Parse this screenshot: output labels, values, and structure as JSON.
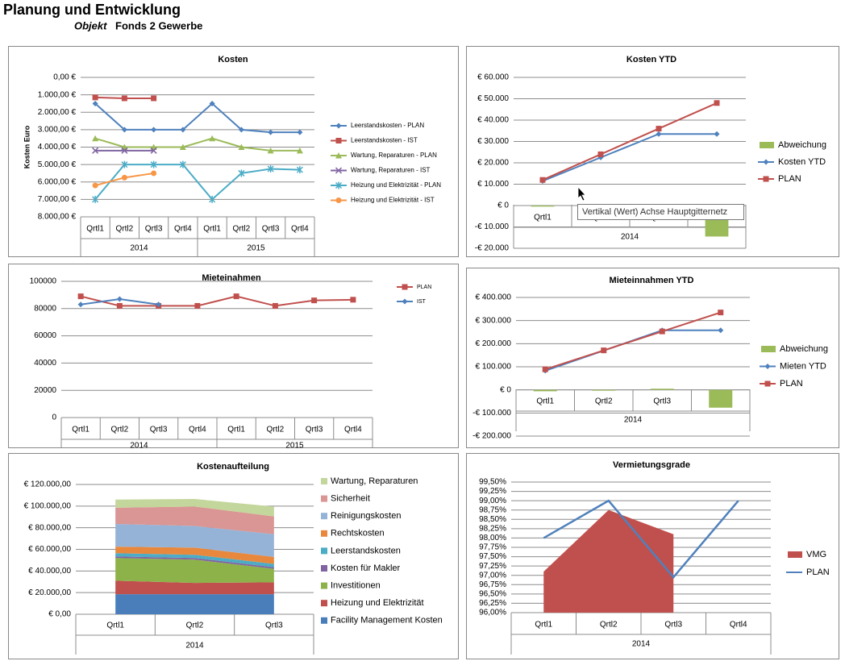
{
  "header": {
    "title": "Planung und Entwicklung",
    "object_label": "Objekt",
    "object_name": "Fonds 2 Gewerbe"
  },
  "tooltip": "Vertikal (Wert) Achse Hauptgitternetz",
  "chart_data": [
    {
      "type": "line",
      "title": "Kosten",
      "ylabel": "Kosten Euro",
      "yreverse": true,
      "grid": true,
      "categories": [
        "Qrtl1",
        "Qrtl2",
        "Qrtl3",
        "Qrtl4",
        "Qrtl1",
        "Qrtl2",
        "Qrtl3",
        "Qrtl4"
      ],
      "category_groups": [
        "2014",
        "2015"
      ],
      "ylim": [
        0,
        8000
      ],
      "yticks": [
        {
          "value": 0,
          "label": "0,00 €"
        },
        {
          "value": 1000,
          "label": "1.000,00 €"
        },
        {
          "value": 2000,
          "label": "2.000,00 €"
        },
        {
          "value": 3000,
          "label": "3.000,00 €"
        },
        {
          "value": 4000,
          "label": "4.000,00 €"
        },
        {
          "value": 5000,
          "label": "5.000,00 €"
        },
        {
          "value": 6000,
          "label": "6.000,00 €"
        },
        {
          "value": 7000,
          "label": "7.000,00 €"
        },
        {
          "value": 8000,
          "label": "8.000,00 €"
        }
      ],
      "series": [
        {
          "name": "Leerstandskosten - PLAN",
          "color": "#4f81bd",
          "kind": "line",
          "marker": "diamond",
          "values": [
            1500,
            3000,
            3000,
            3000,
            1500,
            3000,
            3150,
            3150
          ]
        },
        {
          "name": "Leerstandskosten - IST",
          "color": "#c0504d",
          "kind": "line",
          "marker": "square",
          "values": [
            1150,
            1200,
            1200,
            null,
            null,
            null,
            null,
            null
          ]
        },
        {
          "name": "Wartung, Reparaturen - PLAN",
          "color": "#9bbb59",
          "kind": "line",
          "marker": "triangle",
          "values": [
            3500,
            4000,
            4000,
            4000,
            3500,
            4000,
            4200,
            4200
          ]
        },
        {
          "name": "Wartung, Reparaturen - IST",
          "color": "#8064a2",
          "kind": "line",
          "marker": "x",
          "values": [
            4200,
            4200,
            4200,
            null,
            null,
            null,
            null,
            null
          ]
        },
        {
          "name": "Heizung und Elektrizität - PLAN",
          "color": "#4bacc6",
          "kind": "line",
          "marker": "star",
          "values": [
            7000,
            5000,
            5000,
            5000,
            7000,
            5500,
            5250,
            5300
          ]
        },
        {
          "name": "Heizung und Elektrizität - IST",
          "color": "#f79646",
          "kind": "line",
          "marker": "circle",
          "values": [
            6200,
            5750,
            5500,
            null,
            null,
            null,
            null,
            null
          ]
        }
      ]
    },
    {
      "type": "combo",
      "title": "Kosten YTD",
      "grid": true,
      "categories": [
        "Qrtl1",
        "Qrtl2",
        "Qrtl3",
        "Qrtl4"
      ],
      "category_groups": [
        "2014"
      ],
      "ylim": [
        -20000,
        60000
      ],
      "yticks": [
        {
          "value": -20000,
          "label": "-€ 20.000"
        },
        {
          "value": -10000,
          "label": "-€ 10.000"
        },
        {
          "value": 0,
          "label": "€ 0"
        },
        {
          "value": 10000,
          "label": "€ 10.000"
        },
        {
          "value": 20000,
          "label": "€ 20.000"
        },
        {
          "value": 30000,
          "label": "€ 30.000"
        },
        {
          "value": 40000,
          "label": "€ 40.000"
        },
        {
          "value": 50000,
          "label": "€ 50.000"
        },
        {
          "value": 60000,
          "label": "€ 60.000"
        }
      ],
      "series": [
        {
          "name": "Abweichung",
          "color": "#9bbb59",
          "kind": "bar",
          "values": [
            -500,
            -1500,
            -2500,
            -14500
          ]
        },
        {
          "name": "Kosten YTD",
          "color": "#4f81bd",
          "kind": "line",
          "marker": "diamond",
          "values": [
            11500,
            22500,
            33500,
            33500
          ]
        },
        {
          "name": "PLAN",
          "color": "#c0504d",
          "kind": "line",
          "marker": "square",
          "values": [
            12000,
            24000,
            36000,
            48000
          ]
        }
      ]
    },
    {
      "type": "line",
      "title": "Mieteinahmen",
      "grid": true,
      "categories": [
        "Qrtl1",
        "Qrtl2",
        "Qrtl3",
        "Qrtl4",
        "Qrtl1",
        "Qrtl2",
        "Qrtl3",
        "Qrtl4"
      ],
      "category_groups": [
        "2014",
        "2015"
      ],
      "ylim": [
        0,
        100000
      ],
      "yticks": [
        0,
        20000,
        40000,
        60000,
        80000,
        100000
      ],
      "series": [
        {
          "name": "PLAN",
          "color": "#c0504d",
          "kind": "line",
          "marker": "square",
          "values": [
            89000,
            82000,
            82000,
            82000,
            89000,
            82000,
            86000,
            86500
          ]
        },
        {
          "name": "IST",
          "color": "#4f81bd",
          "kind": "line",
          "marker": "diamond",
          "values": [
            83000,
            87000,
            83000,
            null,
            null,
            null,
            null,
            null
          ]
        }
      ]
    },
    {
      "type": "combo",
      "title": "Mieteinnahmen YTD",
      "grid": true,
      "categories": [
        "Qrtl1",
        "Qrtl2",
        "Qrtl3",
        "Qrtl4"
      ],
      "category_groups": [
        "2014"
      ],
      "ylim": [
        -200000,
        400000
      ],
      "yticks": [
        {
          "value": -200000,
          "label": "-€ 200.000"
        },
        {
          "value": -100000,
          "label": "-€ 100.000"
        },
        {
          "value": 0,
          "label": "€ 0"
        },
        {
          "value": 100000,
          "label": "€ 100.000"
        },
        {
          "value": 200000,
          "label": "€ 200.000"
        },
        {
          "value": 300000,
          "label": "€ 300.000"
        },
        {
          "value": 400000,
          "label": "€ 400.000"
        }
      ],
      "series": [
        {
          "name": "Abweichung",
          "color": "#9bbb59",
          "kind": "bar",
          "values": [
            -6000,
            -1000,
            5000,
            -77000
          ]
        },
        {
          "name": "Mieten YTD",
          "color": "#4f81bd",
          "kind": "line",
          "marker": "diamond",
          "values": [
            83000,
            170000,
            258000,
            258000
          ]
        },
        {
          "name": "PLAN",
          "color": "#c0504d",
          "kind": "line",
          "marker": "square",
          "values": [
            89000,
            171000,
            253000,
            335000
          ]
        }
      ]
    },
    {
      "type": "stacked_area",
      "title": "Kostenaufteilung",
      "grid": true,
      "categories": [
        "Qrtl1",
        "Qrtl2",
        "Qrtl3"
      ],
      "category_groups": [
        "2014"
      ],
      "ylim": [
        0,
        120000
      ],
      "yticks": [
        {
          "value": 0,
          "label": "€ 0,00"
        },
        {
          "value": 20000,
          "label": "€ 20.000,00"
        },
        {
          "value": 40000,
          "label": "€ 40.000,00"
        },
        {
          "value": 60000,
          "label": "€ 60.000,00"
        },
        {
          "value": 80000,
          "label": "€ 80.000,00"
        },
        {
          "value": 100000,
          "label": "€ 100.000,00"
        },
        {
          "value": 120000,
          "label": "€ 120.000,00"
        }
      ],
      "series": [
        {
          "name": "Wartung, Reparaturen",
          "color": "#c3d69b",
          "kind": "area",
          "values": [
            7500,
            7000,
            9000
          ]
        },
        {
          "name": "Sicherheit",
          "color": "#d99694",
          "kind": "area",
          "values": [
            15000,
            18000,
            16500
          ]
        },
        {
          "name": "Reinigungskosten",
          "color": "#95b3d7",
          "kind": "area",
          "values": [
            21000,
            20000,
            21000
          ]
        },
        {
          "name": "Rechtskosten",
          "color": "#e8883d",
          "kind": "area",
          "values": [
            6000,
            6600,
            6500
          ]
        },
        {
          "name": "Leerstandskosten",
          "color": "#4bacc6",
          "kind": "area",
          "values": [
            3000,
            3000,
            3000
          ]
        },
        {
          "name": "Kosten für Makler",
          "color": "#8064a2",
          "kind": "area",
          "values": [
            1500,
            1500,
            1500
          ]
        },
        {
          "name": "Investitionen",
          "color": "#8db24a",
          "kind": "area",
          "values": [
            21000,
            21500,
            12500
          ]
        },
        {
          "name": "Heizung und Elektrizität",
          "color": "#c0504d",
          "kind": "area",
          "values": [
            12500,
            10500,
            11000
          ]
        },
        {
          "name": "Facility Management Kosten",
          "color": "#4a7ebb",
          "kind": "area",
          "values": [
            18500,
            18500,
            18500
          ]
        }
      ]
    },
    {
      "type": "combo",
      "title": "Vermietungsgrade",
      "grid": true,
      "categories": [
        "Qrtl1",
        "Qrtl2",
        "Qrtl3",
        "Qrtl4"
      ],
      "category_groups": [
        "2014"
      ],
      "ylim": [
        96,
        99.5
      ],
      "yticks": [
        {
          "value": 96,
          "label": "96,00%"
        },
        {
          "value": 96.25,
          "label": "96,25%"
        },
        {
          "value": 96.5,
          "label": "96,50%"
        },
        {
          "value": 96.75,
          "label": "96,75%"
        },
        {
          "value": 97,
          "label": "97,00%"
        },
        {
          "value": 97.25,
          "label": "97,25%"
        },
        {
          "value": 97.5,
          "label": "97,50%"
        },
        {
          "value": 97.75,
          "label": "97,75%"
        },
        {
          "value": 98,
          "label": "98,00%"
        },
        {
          "value": 98.25,
          "label": "98,25%"
        },
        {
          "value": 98.5,
          "label": "98,50%"
        },
        {
          "value": 98.75,
          "label": "98,75%"
        },
        {
          "value": 99,
          "label": "99,00%"
        },
        {
          "value": 99.25,
          "label": "99,25%"
        },
        {
          "value": 99.5,
          "label": "99,50%"
        }
      ],
      "series": [
        {
          "name": "VMG",
          "color": "#c0504d",
          "kind": "area",
          "values": [
            97.1,
            98.75,
            98.1,
            null
          ]
        },
        {
          "name": "PLAN",
          "color": "#4f81bd",
          "kind": "line",
          "marker": "none",
          "values": [
            98.0,
            99.0,
            96.95,
            99.0
          ]
        }
      ]
    }
  ]
}
